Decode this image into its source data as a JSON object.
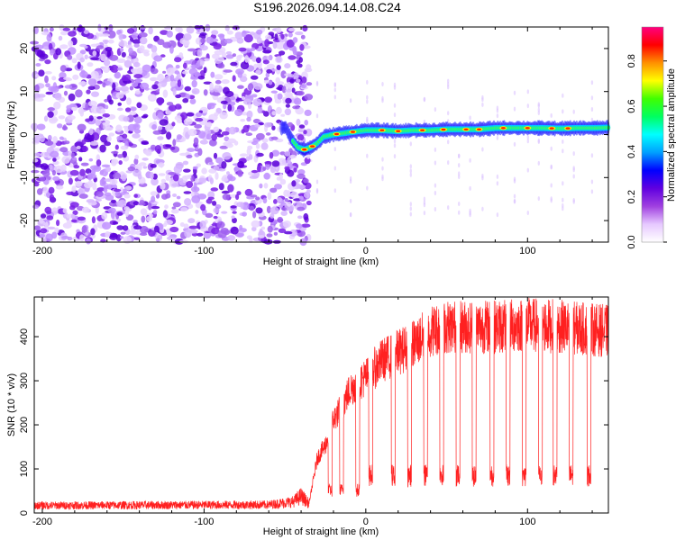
{
  "title": "S196.2026.094.14.08.C24",
  "chart_data": [
    {
      "type": "heatmap",
      "xlabel": "Height of straight line (km)",
      "ylabel": "Frequency (Hz)",
      "xlim": [
        -205,
        150
      ],
      "ylim": [
        -25,
        25
      ],
      "xticks": [
        -200,
        -100,
        0,
        100
      ],
      "yticks": [
        -20,
        -10,
        0,
        10,
        20
      ],
      "noise_region_x": [
        -205,
        -35
      ],
      "signal_track": [
        [
          -50,
          2
        ],
        [
          -46,
          -1
        ],
        [
          -42,
          -3
        ],
        [
          -38,
          -3.5
        ],
        [
          -34,
          -3
        ],
        [
          -30,
          -2
        ],
        [
          -26,
          -0.5
        ],
        [
          -20,
          0
        ],
        [
          -10,
          0.5
        ],
        [
          0,
          1
        ],
        [
          10,
          1
        ],
        [
          20,
          0.8
        ],
        [
          30,
          1
        ],
        [
          40,
          1
        ],
        [
          50,
          1.2
        ],
        [
          60,
          1.2
        ],
        [
          70,
          1.2
        ],
        [
          80,
          1.5
        ],
        [
          90,
          1.5
        ],
        [
          100,
          1.5
        ],
        [
          110,
          1.5
        ],
        [
          120,
          1.4
        ],
        [
          130,
          1.5
        ],
        [
          140,
          1.5
        ],
        [
          150,
          1.6
        ]
      ],
      "colorbar": {
        "label": "Normalized spectral amplitude",
        "ticks": [
          "0.0",
          "0.2",
          "0.4",
          "0.6",
          "0.8"
        ],
        "range": [
          0,
          0.95
        ],
        "colors": [
          "#ffffff",
          "#e6c8ff",
          "#a040e0",
          "#6000e0",
          "#0000ff",
          "#00a0ff",
          "#00ffff",
          "#00ff60",
          "#40ff00",
          "#ffff00",
          "#ff9000",
          "#ff0000",
          "#ff0080"
        ]
      }
    },
    {
      "type": "line",
      "xlabel": "Height of straight line (km)",
      "ylabel": "SNR (10 * v/v)",
      "xlim": [
        -205,
        150
      ],
      "ylim": [
        0,
        490
      ],
      "xticks": [
        -200,
        -100,
        0,
        100
      ],
      "yticks": [
        0,
        100,
        200,
        300,
        400
      ],
      "series": [
        {
          "name": "SNR",
          "color": "#ff0000",
          "envelope": [
            [
              -205,
              20
            ],
            [
              -60,
              22
            ],
            [
              -45,
              30
            ],
            [
              -40,
              45
            ],
            [
              -35,
              25
            ],
            [
              -30,
              130
            ],
            [
              -25,
              160
            ],
            [
              -20,
              220
            ],
            [
              -15,
              250
            ],
            [
              -10,
              290
            ],
            [
              -5,
              310
            ],
            [
              0,
              320
            ],
            [
              10,
              360
            ],
            [
              20,
              380
            ],
            [
              30,
              400
            ],
            [
              40,
              430
            ],
            [
              50,
              440
            ],
            [
              60,
              440
            ],
            [
              80,
              440
            ],
            [
              100,
              445
            ],
            [
              120,
              440
            ],
            [
              150,
              430
            ]
          ],
          "dips": [
            -22,
            -15,
            -5,
            3,
            17,
            27,
            37,
            47,
            57,
            67,
            78,
            88,
            98,
            108,
            117,
            127,
            138
          ],
          "dip_level": 85
        }
      ]
    }
  ]
}
